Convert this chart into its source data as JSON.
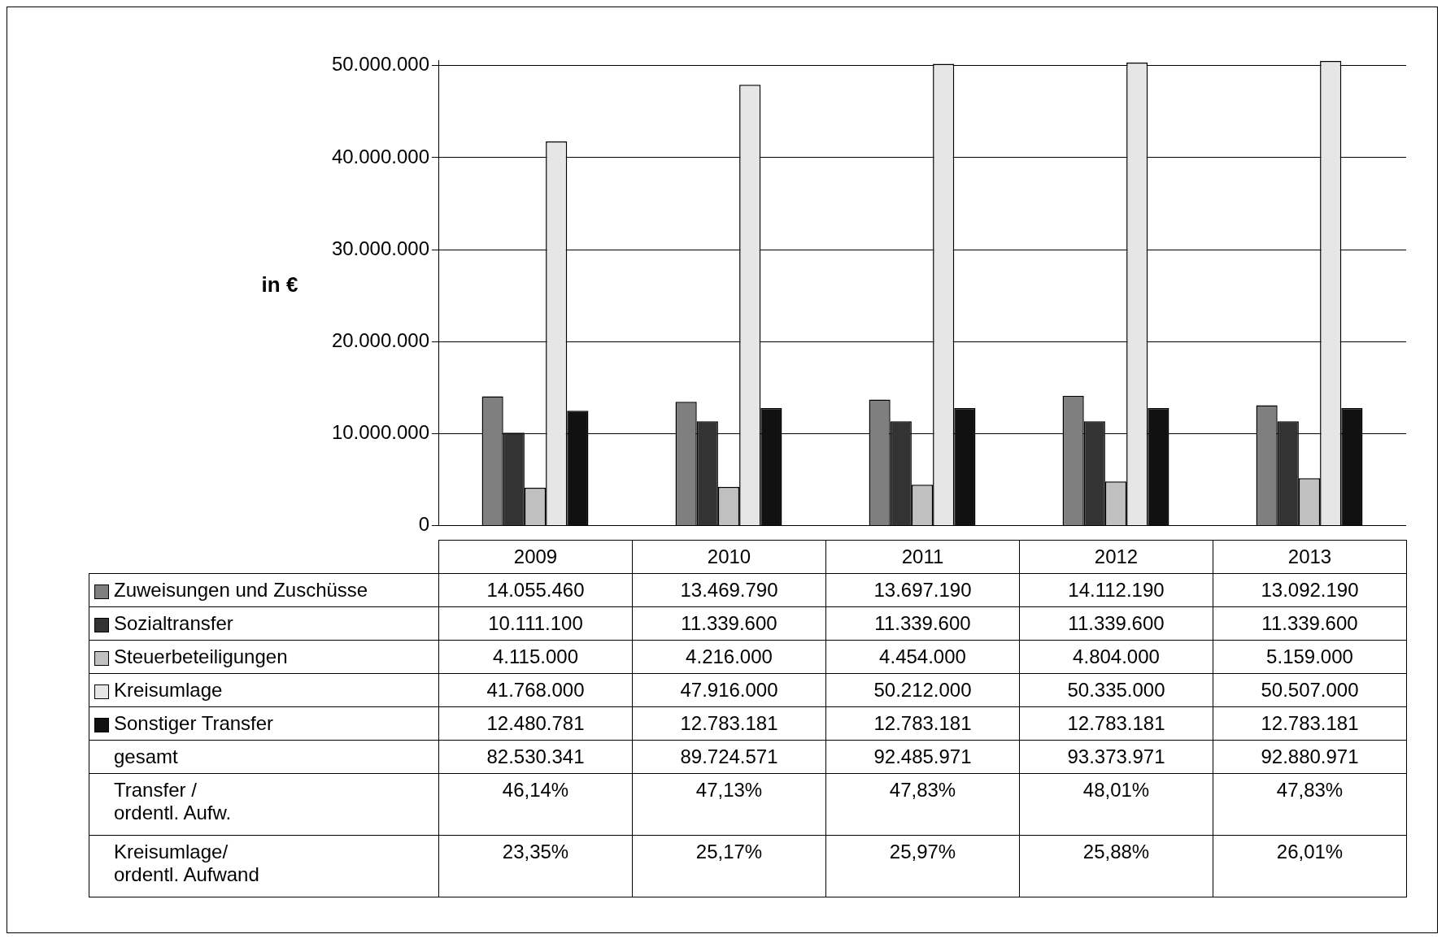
{
  "chart_data": {
    "type": "bar",
    "ylabel": "in €",
    "categories": [
      "2009",
      "2010",
      "2011",
      "2012",
      "2013"
    ],
    "series": [
      {
        "name": "Zuweisungen und Zuschüsse",
        "color": "#7f7f7f",
        "values": [
          14055460,
          13469790,
          13697190,
          14112190,
          13092190
        ]
      },
      {
        "name": "Sozialtransfer",
        "color": "#333333",
        "values": [
          10111100,
          11339600,
          11339600,
          11339600,
          11339600
        ]
      },
      {
        "name": "Steuerbeteiligungen",
        "color": "#c0c0c0",
        "values": [
          4115000,
          4216000,
          4454000,
          4804000,
          5159000
        ]
      },
      {
        "name": "Kreisumlage",
        "color": "#e6e6e6",
        "values": [
          41768000,
          47916000,
          50212000,
          50335000,
          50507000
        ]
      },
      {
        "name": "Sonstiger Transfer",
        "color": "#111111",
        "values": [
          12480781,
          12783181,
          12783181,
          12783181,
          12783181
        ]
      }
    ],
    "ylim": [
      0,
      50600000
    ],
    "yticks": [
      {
        "value": 0,
        "label": "0"
      },
      {
        "value": 10000000,
        "label": "10.000.000"
      },
      {
        "value": 20000000,
        "label": "20.000.000"
      },
      {
        "value": 30000000,
        "label": "30.000.000"
      },
      {
        "value": 40000000,
        "label": "40.000.000"
      },
      {
        "value": 50000000,
        "label": "50.000.000"
      }
    ],
    "grid": "y",
    "legend": "bottom",
    "annotations": [
      "14.055.460",
      "13.469.790",
      "13.697.190",
      "14.112.190",
      "13.092.190",
      "10.111.100",
      "11.339.600",
      "11.339.600",
      "11.339.600",
      "11.339.600",
      "4.115.000",
      "4.216.000",
      "4.454.000",
      "4.804.000",
      "5.159.000",
      "41.768.000",
      "47.916.000",
      "50.212.000",
      "50.335.000",
      "50.507.000",
      "12.480.781",
      "12.783.181",
      "12.783.181",
      "12.783.181",
      "12.783.181",
      "gesamt",
      "82.530.341",
      "89.724.571",
      "92.485.971",
      "93.373.971",
      "92.880.971",
      "Transfer /\nordentl. Aufw.",
      "46,14%",
      "47,13%",
      "47,83%",
      "48,01%",
      "47,83%",
      "Kreisumlage/\nordentl. Aufwand",
      "23,35%",
      "25,17%",
      "25,97%",
      "25,88%",
      "26,01%"
    ]
  }
}
